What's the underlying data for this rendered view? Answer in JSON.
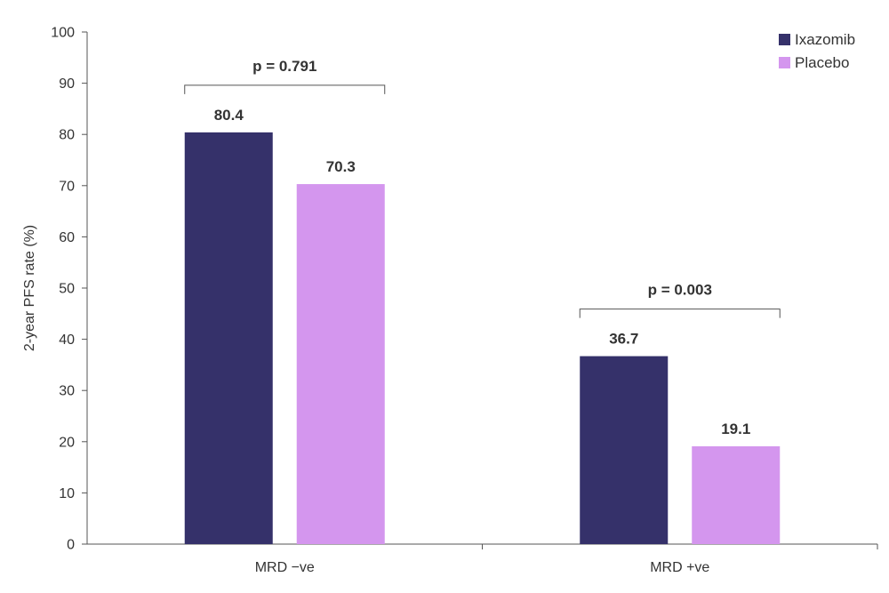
{
  "chart_data": {
    "type": "bar",
    "categories": [
      "MRD −ve",
      "MRD +ve"
    ],
    "series": [
      {
        "name": "Ixazomib",
        "color": "#35316a",
        "values": [
          80.4,
          36.7
        ]
      },
      {
        "name": "Placebo",
        "color": "#d496ee",
        "values": [
          70.3,
          19.1
        ]
      }
    ],
    "ylabel": "2-year PFS rate (%)",
    "ylim": [
      0,
      100
    ],
    "yticks": [
      0,
      10,
      20,
      30,
      40,
      50,
      60,
      70,
      80,
      90,
      100
    ],
    "annotations": [
      "p = 0.791",
      "p = 0.003"
    ],
    "legend_position": "top-right",
    "grid": false
  }
}
